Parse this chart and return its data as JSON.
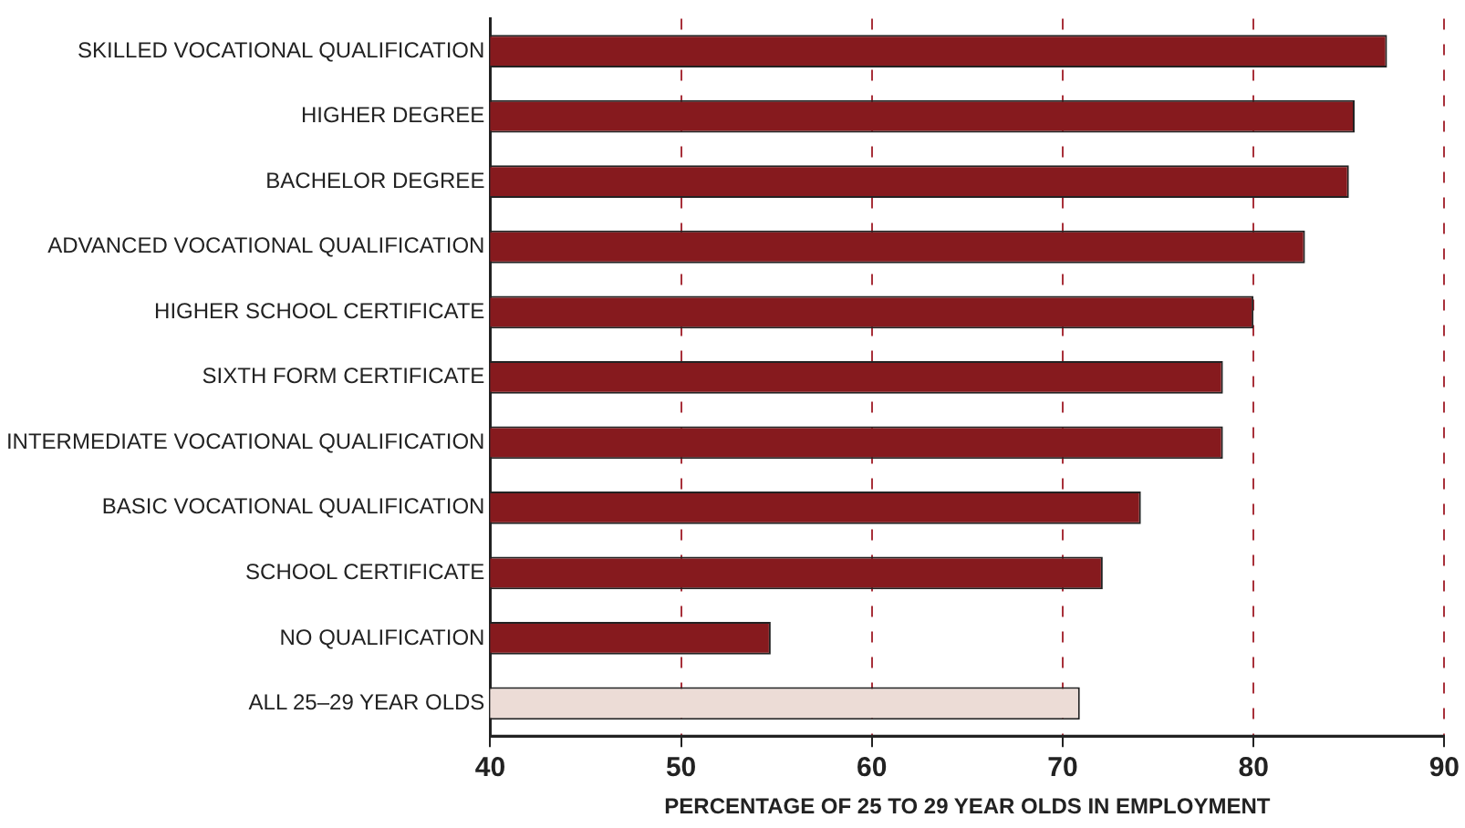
{
  "chart_data": {
    "type": "bar",
    "orientation": "horizontal",
    "xlabel": "PERCENTAGE OF 25 TO 29 YEAR OLDS IN EMPLOYMENT",
    "categories": [
      "SKILLED VOCATIONAL QUALIFICATION",
      "HIGHER DEGREE",
      "BACHELOR DEGREE",
      "ADVANCED VOCATIONAL QUALIFICATION",
      "HIGHER SCHOOL CERTIFICATE",
      "SIXTH FORM CERTIFICATE",
      "INTERMEDIATE VOCATIONAL QUALIFICATION",
      "BASIC VOCATIONAL QUALIFICATION",
      "SCHOOL CERTIFICATE",
      "NO QUALIFICATION",
      "ALL 25–29 YEAR OLDS"
    ],
    "values": [
      87.0,
      85.3,
      85.0,
      82.7,
      80.0,
      78.4,
      78.4,
      74.1,
      72.1,
      54.7,
      70.9
    ],
    "colors": [
      "#861a1e",
      "#861a1e",
      "#861a1e",
      "#861a1e",
      "#861a1e",
      "#861a1e",
      "#861a1e",
      "#861a1e",
      "#861a1e",
      "#861a1e",
      "#ecdcd6"
    ],
    "xlim": [
      40,
      90
    ],
    "xticks": [
      40,
      50,
      60,
      70,
      80,
      90
    ],
    "grid": "x",
    "legend": false
  }
}
